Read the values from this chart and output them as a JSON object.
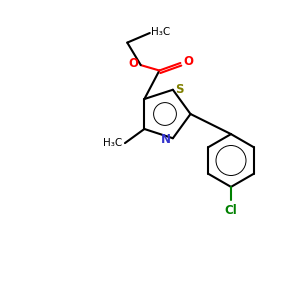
{
  "background_color": "#ffffff",
  "bond_color": "#000000",
  "sulfur_color": "#808000",
  "nitrogen_color": "#3333cc",
  "oxygen_color": "#ff0000",
  "chlorine_color": "#008000",
  "line_width": 1.5,
  "figsize": [
    3.0,
    3.0
  ],
  "dpi": 100,
  "xlim": [
    0,
    10
  ],
  "ylim": [
    0,
    10
  ]
}
